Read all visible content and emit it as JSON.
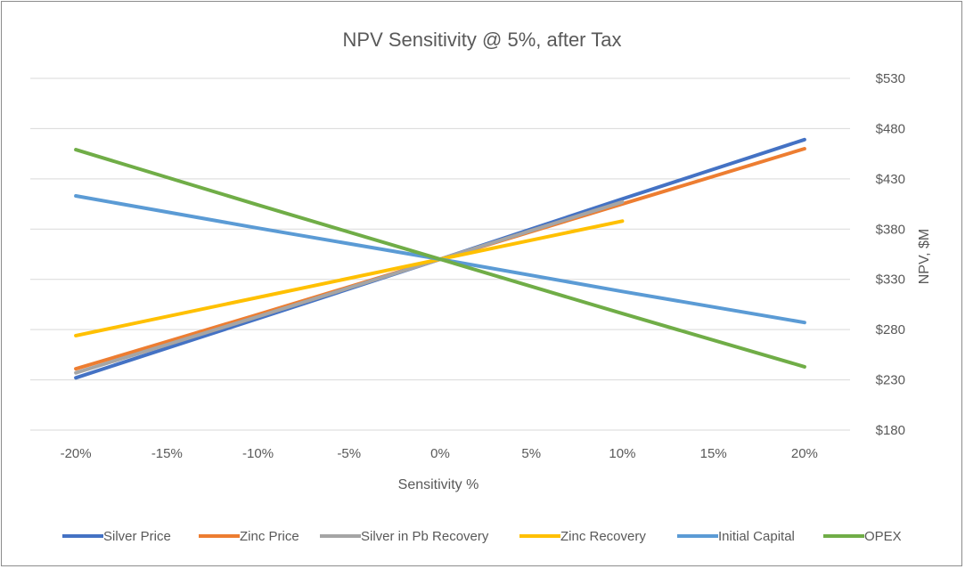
{
  "chart_data": {
    "type": "line",
    "title": "NPV Sensitivity @ 5%, after Tax",
    "xlabel": "Sensitivity %",
    "ylabel": "NPV, $M",
    "x": [
      -20,
      -10,
      0,
      10,
      20
    ],
    "x_tick_labels": [
      "-20%",
      "-15%",
      "-10%",
      "-5%",
      "0%",
      "5%",
      "10%",
      "15%",
      "20%"
    ],
    "x_ticks": [
      -20,
      -15,
      -10,
      -5,
      0,
      5,
      10,
      15,
      20
    ],
    "y_tick_labels": [
      "$180",
      "$230",
      "$280",
      "$330",
      "$380",
      "$430",
      "$480",
      "$530"
    ],
    "y_ticks": [
      180,
      230,
      280,
      330,
      380,
      430,
      480,
      530
    ],
    "xlim": [
      -22.5,
      22.5
    ],
    "ylim": [
      180,
      530
    ],
    "y_axis_side": "right",
    "grid": true,
    "legend_position": "bottom",
    "series": [
      {
        "name": "Silver Price",
        "color": "#4472c4",
        "values": [
          232,
          291,
          350,
          410,
          469
        ]
      },
      {
        "name": "Zinc Price",
        "color": "#ed7d31",
        "values": [
          241,
          295,
          350,
          405,
          460
        ]
      },
      {
        "name": "Silver in Pb Recovery",
        "color": "#a5a5a5",
        "values": [
          237,
          293,
          350,
          407,
          null
        ]
      },
      {
        "name": "Zinc Recovery",
        "color": "#ffc000",
        "values": [
          274,
          312,
          350,
          388,
          null
        ]
      },
      {
        "name": "Initial Capital",
        "color": "#5b9bd5",
        "values": [
          413,
          381,
          350,
          318,
          287
        ]
      },
      {
        "name": "OPEX",
        "color": "#70ad47",
        "values": [
          459,
          404,
          350,
          296,
          243
        ]
      }
    ]
  }
}
